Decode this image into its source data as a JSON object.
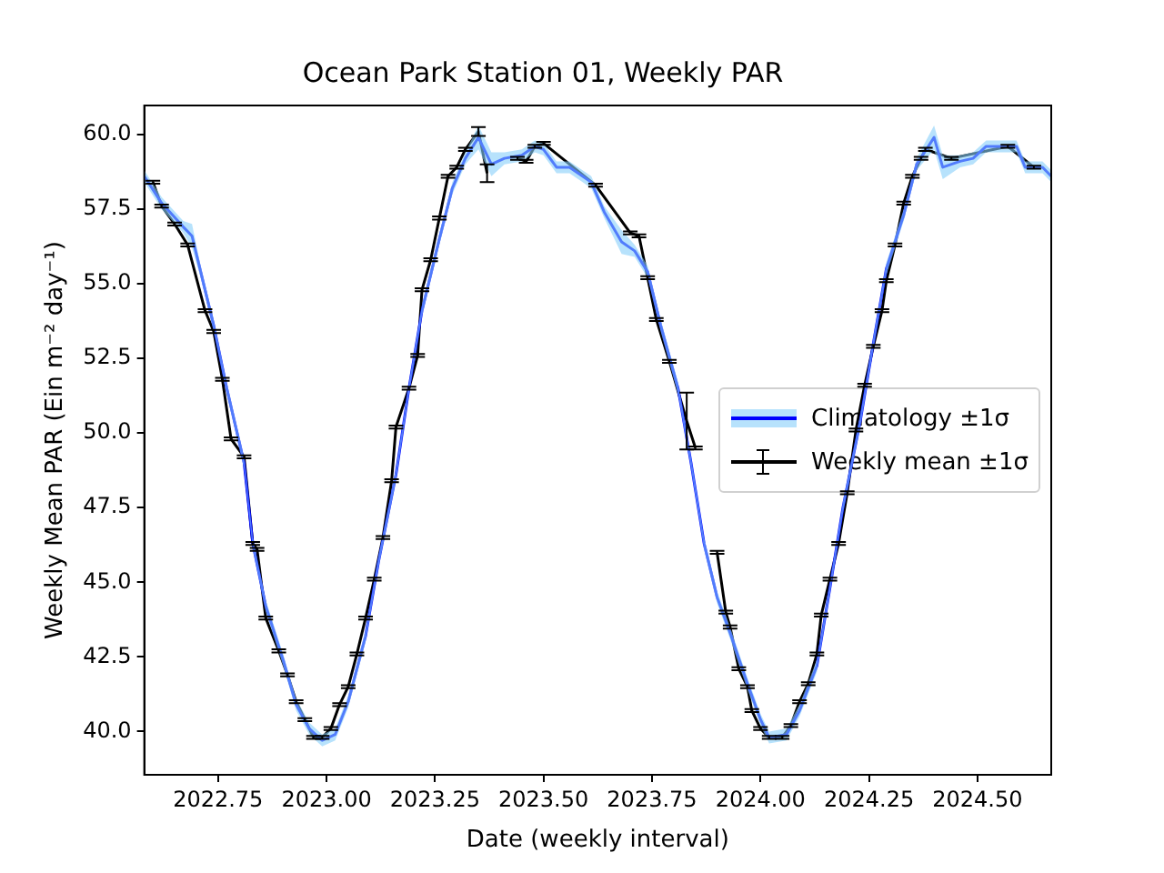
{
  "chart_data": {
    "type": "line",
    "title": "Ocean Park Station 01, Weekly PAR",
    "xlabel": "Date (weekly interval)",
    "ylabel": "Weekly Mean PAR (Ein m⁻² day⁻¹)",
    "xlim": [
      2022.58,
      2024.67
    ],
    "xticks": [
      {
        "value": 2022.75,
        "label": "2022.75"
      },
      {
        "value": 2023,
        "label": "2023.00"
      },
      {
        "value": 2023.25,
        "label": "2023.25"
      },
      {
        "value": 2023.5,
        "label": "2023.50"
      },
      {
        "value": 2023.75,
        "label": "2023.75"
      },
      {
        "value": 2024,
        "label": "2024.00"
      },
      {
        "value": 2024.25,
        "label": "2024.25"
      },
      {
        "value": 2024.5,
        "label": "2024.50"
      }
    ],
    "ylim": [
      38.55,
      60.97
    ],
    "yticks": [
      {
        "value": 40,
        "label": "40.0"
      },
      42.5,
      {
        "value": 45,
        "label": "45.0"
      },
      47.5,
      {
        "value": 50,
        "label": "50.0"
      },
      52.5,
      {
        "value": 55,
        "label": "55.0"
      },
      57.5,
      {
        "value": 60,
        "label": "60.0"
      }
    ],
    "grid": false,
    "legend": "right",
    "line_style": "solid",
    "series": [
      {
        "name": "Climatology ±1σ",
        "color": "#0000ff",
        "x": [
          2022.58,
          2022.62,
          2022.67,
          2022.69,
          2022.71,
          2022.74,
          2022.77,
          2022.81,
          2022.83,
          2022.86,
          2022.9,
          2022.93,
          2022.96,
          2022.99,
          2023.02,
          2023.05,
          2023.09,
          2023.12,
          2023.16,
          2023.19,
          2023.22,
          2023.26,
          2023.29,
          2023.32,
          2023.35,
          2023.38,
          2023.41,
          2023.45,
          2023.48,
          2023.5,
          2023.53,
          2023.56,
          2023.59,
          2023.61,
          2023.64,
          2023.68,
          2023.71,
          2023.74,
          2023.77,
          2023.81,
          2023.84,
          2023.87,
          2023.9,
          2023.93,
          2023.97,
          2024,
          2024.02,
          2024.06,
          2024.09,
          2024.13,
          2024.16,
          2024.19,
          2024.23,
          2024.26,
          2024.29,
          2024.33,
          2024.36,
          2024.4,
          2024.42,
          2024.46,
          2024.49,
          2024.52,
          2024.56,
          2024.59,
          2024.61,
          2024.65,
          2024.67
        ],
        "values": [
          58.6,
          57.7,
          56.9,
          56.6,
          55.4,
          53.6,
          51.5,
          49.0,
          46.3,
          44.2,
          42.4,
          40.9,
          40.1,
          39.7,
          39.9,
          41.0,
          43.2,
          45.7,
          48.6,
          51.5,
          54.1,
          56.5,
          58.2,
          59.2,
          59.9,
          59.0,
          59.2,
          59.3,
          59.6,
          59.5,
          58.9,
          58.9,
          58.6,
          58.4,
          57.4,
          56.4,
          56.1,
          55.4,
          53.6,
          51.5,
          49.0,
          46.3,
          44.5,
          43.3,
          41.6,
          40.4,
          39.8,
          39.9,
          40.7,
          42.2,
          44.8,
          47.5,
          50.4,
          53.0,
          55.5,
          57.3,
          59.0,
          59.9,
          58.9,
          59.1,
          59.2,
          59.6,
          59.6,
          59.6,
          58.9,
          58.9,
          58.6
        ],
        "lower": [
          58.4,
          57.5,
          56.7,
          56.2,
          55.2,
          53.4,
          51.3,
          48.8,
          46.1,
          44.0,
          42.2,
          40.7,
          39.9,
          39.5,
          39.7,
          40.8,
          43.0,
          45.5,
          48.4,
          51.3,
          53.9,
          56.3,
          58.0,
          59.0,
          59.5,
          58.6,
          59.0,
          59.1,
          59.4,
          59.3,
          58.7,
          58.7,
          58.4,
          58.2,
          57.2,
          56.0,
          55.9,
          55.2,
          53.4,
          51.3,
          48.8,
          46.1,
          44.3,
          43.1,
          41.4,
          40.2,
          39.6,
          39.7,
          40.5,
          42.0,
          44.6,
          47.3,
          50.2,
          52.8,
          55.3,
          57.1,
          58.8,
          59.5,
          58.5,
          58.9,
          59.0,
          59.4,
          59.4,
          59.4,
          58.7,
          58.7,
          58.4
        ],
        "upper": [
          58.8,
          57.9,
          57.1,
          57.0,
          55.6,
          53.8,
          51.7,
          49.2,
          46.5,
          44.4,
          42.6,
          41.1,
          40.3,
          39.9,
          40.1,
          41.2,
          43.4,
          45.9,
          48.8,
          51.7,
          54.3,
          56.7,
          58.4,
          59.4,
          60.3,
          59.4,
          59.4,
          59.5,
          59.8,
          59.7,
          59.1,
          59.1,
          58.8,
          58.6,
          57.6,
          56.8,
          56.3,
          55.6,
          53.8,
          51.7,
          49.2,
          46.5,
          44.7,
          43.5,
          41.8,
          40.6,
          40.0,
          40.1,
          40.9,
          42.4,
          45.0,
          47.7,
          50.6,
          53.2,
          55.7,
          57.5,
          59.2,
          60.3,
          59.3,
          59.3,
          59.4,
          59.8,
          59.8,
          59.8,
          59.1,
          59.1,
          58.8
        ]
      },
      {
        "name": "Weekly mean ±1σ",
        "color": "#000000",
        "x": [
          2022.6,
          2022.62,
          2022.65,
          2022.68,
          2022.72,
          2022.74,
          2022.76,
          2022.78,
          2022.81,
          2022.83,
          2022.84,
          2022.86,
          2022.89,
          2022.91,
          2022.93,
          2022.95,
          2022.97,
          2022.99,
          2023.01,
          2023.03,
          2023.05,
          2023.07,
          2023.09,
          2023.11,
          2023.13,
          2023.15,
          2023.16,
          2023.19,
          2023.21,
          2023.22,
          2023.24,
          2023.26,
          2023.28,
          2023.3,
          2023.32,
          2023.35,
          2023.37,
          2023.4,
          2023.44,
          2023.46,
          2023.48,
          2023.5,
          2023.62,
          2023.7,
          2023.72,
          2023.74,
          2023.76,
          2023.79,
          2023.83,
          2023.85,
          2023.87,
          2023.9,
          2023.92,
          2023.93,
          2023.95,
          2023.97,
          2023.98,
          2024,
          2024.02,
          2024.05,
          2024.07,
          2024.09,
          2024.11,
          2024.13,
          2024.14,
          2024.16,
          2024.18,
          2024.2,
          2024.22,
          2024.24,
          2024.26,
          2024.28,
          2024.29,
          2024.31,
          2024.33,
          2024.35,
          2024.37,
          2024.38,
          2024.44,
          2024.57,
          2024.63
        ],
        "values": [
          58.4,
          57.6,
          57.0,
          56.3,
          54.1,
          53.4,
          51.8,
          49.8,
          49.2,
          46.3,
          46.1,
          43.8,
          42.7,
          41.9,
          41.0,
          40.4,
          39.8,
          39.8,
          40.1,
          40.9,
          41.5,
          42.6,
          43.8,
          45.1,
          46.5,
          48.4,
          50.2,
          51.5,
          52.6,
          54.8,
          55.8,
          57.2,
          58.6,
          58.9,
          59.5,
          60.1,
          58.7,
          null,
          59.2,
          59.1,
          59.6,
          59.7,
          58.3,
          56.7,
          56.6,
          55.2,
          53.8,
          52.4,
          50.4,
          49.5,
          null,
          46.0,
          44.0,
          43.5,
          42.1,
          41.5,
          40.7,
          40.1,
          39.8,
          39.8,
          40.2,
          41.0,
          41.6,
          42.6,
          43.9,
          45.1,
          46.3,
          48.0,
          50.1,
          51.6,
          52.9,
          54.1,
          55.1,
          56.3,
          57.7,
          58.6,
          59.2,
          59.5,
          59.2,
          59.6,
          58.9
        ],
        "errors": [
          0.05,
          0.05,
          0.05,
          0.05,
          0.05,
          0.05,
          0.05,
          0.05,
          0.05,
          0.05,
          0.05,
          0.05,
          0.05,
          0.05,
          0.05,
          0.05,
          0.05,
          0.05,
          0.05,
          0.05,
          0.05,
          0.05,
          0.05,
          0.05,
          0.05,
          0.05,
          0.05,
          0.05,
          0.05,
          0.05,
          0.05,
          0.05,
          0.05,
          0.05,
          0.05,
          0.15,
          0.3,
          null,
          0.05,
          0.05,
          0.05,
          0.05,
          0.05,
          0.05,
          0.05,
          0.05,
          0.05,
          0.05,
          0.95,
          0.05,
          null,
          0.05,
          0.05,
          0.05,
          0.05,
          0.05,
          0.05,
          0.05,
          0.05,
          0.05,
          0.05,
          0.05,
          0.05,
          0.05,
          0.05,
          0.05,
          0.05,
          0.05,
          0.05,
          0.05,
          0.05,
          0.05,
          0.05,
          0.05,
          0.05,
          0.05,
          0.05,
          0.05,
          0.05,
          0.05,
          0.05
        ]
      }
    ]
  }
}
